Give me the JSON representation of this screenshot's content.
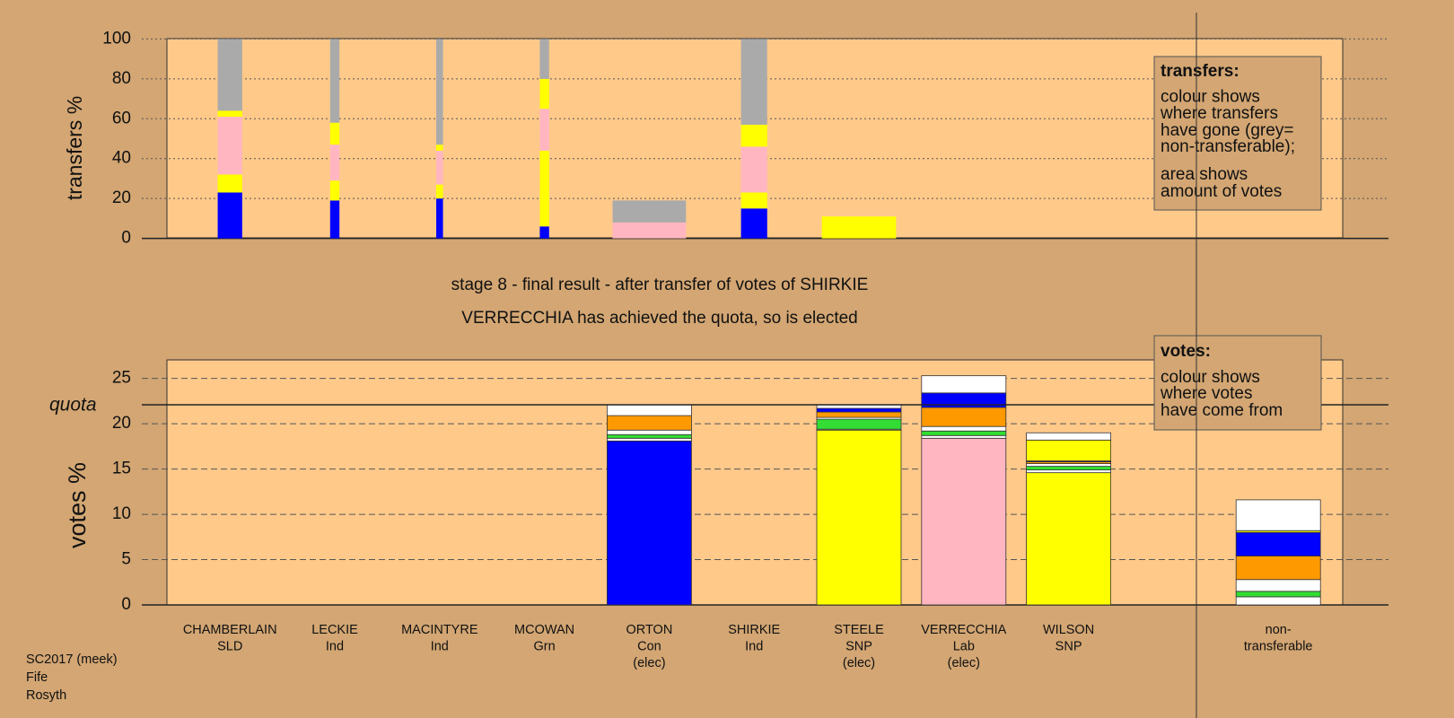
{
  "chart_data": [
    {
      "type": "bar",
      "stacked": true,
      "ylabel": "transfers %",
      "ylim": [
        0,
        100
      ],
      "yticks": [
        0,
        20,
        40,
        60,
        80,
        100
      ],
      "grid": true,
      "widths": [
        0.29,
        0.11,
        0.08,
        0.11,
        0.87,
        0.31,
        0.88
      ],
      "series": [
        {
          "color": "#0000ff",
          "values": [
            23,
            19,
            20,
            6,
            0,
            15,
            0
          ]
        },
        {
          "color": "#ffff00",
          "values": [
            9,
            10,
            7,
            38,
            0,
            8,
            0
          ]
        },
        {
          "color": "#ffb6c1",
          "values": [
            29,
            18,
            17,
            21,
            8,
            23,
            0
          ]
        },
        {
          "color": "#ffff00",
          "values": [
            3,
            11,
            3,
            15,
            0,
            11,
            11
          ]
        },
        {
          "color": "#aaaaaa",
          "values": [
            36,
            42,
            53,
            20,
            11,
            43,
            0
          ]
        }
      ],
      "note": {
        "title": "transfers:",
        "lines": [
          "colour shows",
          "where transfers",
          "have gone (grey=",
          "non-transferable);",
          "area shows",
          "amount of votes"
        ]
      }
    },
    {
      "type": "bar",
      "stacked": true,
      "ylabel": "votes %",
      "ylim": [
        0,
        27
      ],
      "yticks": [
        0,
        5,
        10,
        15,
        20,
        25
      ],
      "grid": true,
      "categories": [
        [
          "CHAMBERLAIN",
          "SLD"
        ],
        [
          "LECKIE",
          "Ind"
        ],
        [
          "MACINTYRE",
          "Ind"
        ],
        [
          "MCOWAN",
          "Grn"
        ],
        [
          "ORTON",
          "Con",
          "(elec)"
        ],
        [
          "SHIRKIE",
          "Ind"
        ],
        [
          "STEELE",
          "SNP",
          "(elec)"
        ],
        [
          "VERRECCHIA",
          "Lab",
          "(elec)"
        ],
        [
          "WILSON",
          "SNP"
        ],
        null,
        [
          "non-",
          "transferable"
        ]
      ],
      "series": [
        {
          "colors": [
            "#ff9900",
            "#ffffff",
            "#ffffff",
            "#33dd33",
            "#0000ff",
            "#ffffff",
            "#ffff00",
            "#ffb6c1",
            "#ffff00",
            null,
            "#ffffff"
          ],
          "values": [
            0,
            0,
            0,
            0,
            18.1,
            0,
            19.3,
            18.4,
            14.6,
            null,
            0
          ]
        },
        {
          "color": "#ffffff",
          "values": [
            0,
            0,
            0,
            0,
            0.3,
            0,
            0.1,
            0.3,
            0.3,
            null,
            0.9
          ]
        },
        {
          "color": "#33dd33",
          "values": [
            0,
            0,
            0,
            0,
            0.4,
            0,
            1.1,
            0.5,
            0.4,
            null,
            0.6
          ]
        },
        {
          "color": "#ffffff",
          "values": [
            0,
            0,
            0,
            0,
            0.5,
            0,
            0.2,
            0.5,
            0.3,
            null,
            1.3
          ]
        },
        {
          "color": "#ff9900",
          "values": [
            0,
            0,
            0,
            0,
            1.6,
            0,
            0.6,
            2.1,
            0.2,
            null,
            2.6
          ]
        },
        {
          "color": "#0000ff",
          "values": [
            0,
            0,
            0,
            0,
            0,
            0,
            0.4,
            1.6,
            0.1,
            null,
            2.6
          ]
        },
        {
          "color": "#ffff00",
          "values": [
            0,
            0,
            0,
            0,
            0,
            0,
            0,
            0,
            2.3,
            null,
            0.2
          ]
        },
        {
          "color": "#ffffff",
          "values": [
            0,
            0,
            0,
            0,
            1.2,
            0,
            0.4,
            1.9,
            0.8,
            null,
            3.4
          ]
        }
      ],
      "quota": {
        "label": "quota",
        "value": 22.1
      },
      "note": {
        "title": "votes:",
        "lines": [
          "colour shows",
          "where votes",
          "have come from"
        ]
      }
    }
  ],
  "captions": [
    "stage 8 - final result - after transfer of votes of SHIRKIE",
    "VERRECCHIA has achieved the quota, so is elected"
  ],
  "footer": [
    "SC2017 (meek)",
    "Fife",
    "Rosyth"
  ]
}
